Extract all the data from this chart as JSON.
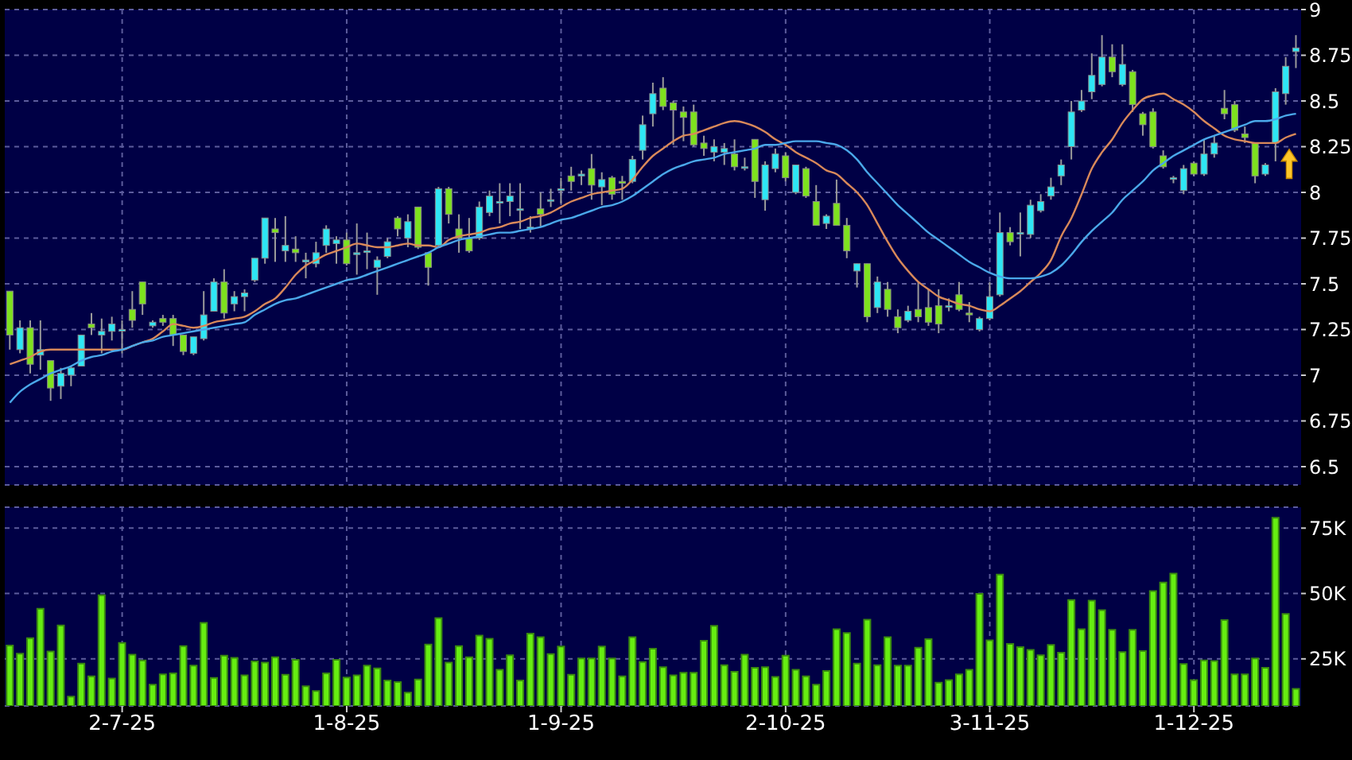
{
  "chart_data": [
    {
      "type": "candlestick",
      "categories": [
        null,
        null,
        null,
        null,
        null,
        null,
        null,
        null,
        null,
        null,
        null,
        null,
        null,
        null,
        null,
        null,
        null,
        null,
        null,
        null,
        null,
        null,
        null,
        null,
        null,
        null,
        null,
        null,
        null,
        null,
        null,
        null,
        null,
        null,
        null,
        null,
        null,
        null,
        null,
        null,
        null,
        null,
        null,
        null,
        null,
        null,
        null,
        null,
        null,
        null,
        null,
        null,
        null,
        null,
        null,
        null,
        null,
        null,
        null,
        null,
        null,
        null,
        null,
        null,
        null,
        null,
        null,
        null,
        null,
        null,
        null,
        null,
        null,
        null,
        null,
        null,
        null,
        null,
        null,
        null,
        null,
        null,
        null,
        null,
        null,
        null,
        null,
        null,
        null,
        null,
        null,
        null,
        null,
        null,
        null,
        null,
        null,
        null,
        null,
        null,
        null,
        null,
        null,
        null,
        null,
        null,
        null,
        null,
        null,
        null,
        null,
        null,
        null,
        null,
        null,
        null,
        null,
        null,
        null,
        null,
        null,
        null,
        null,
        null,
        null,
        null,
        null
      ],
      "ohlc": [
        [
          7.46,
          7.46,
          7.14,
          7.22
        ],
        [
          7.14,
          7.3,
          7.12,
          7.26
        ],
        [
          7.26,
          7.3,
          7.01,
          7.06
        ],
        [
          7.11,
          7.3,
          7.03,
          7.14
        ],
        [
          7.08,
          7.08,
          6.86,
          6.93
        ],
        [
          6.94,
          7.04,
          6.87,
          7.01
        ],
        [
          7.0,
          7.05,
          6.94,
          7.04
        ],
        [
          7.05,
          7.22,
          7.05,
          7.22
        ],
        [
          7.28,
          7.34,
          7.22,
          7.26
        ],
        [
          7.22,
          7.31,
          7.12,
          7.24
        ],
        [
          7.24,
          7.32,
          7.19,
          7.28
        ],
        [
          7.25,
          7.3,
          7.12,
          7.25
        ],
        [
          7.36,
          7.46,
          7.26,
          7.3
        ],
        [
          7.51,
          7.51,
          7.33,
          7.39
        ],
        [
          7.27,
          7.3,
          7.26,
          7.29
        ],
        [
          7.31,
          7.33,
          7.27,
          7.29
        ],
        [
          7.31,
          7.33,
          7.16,
          7.22
        ],
        [
          7.22,
          7.22,
          7.11,
          7.13
        ],
        [
          7.12,
          7.21,
          7.11,
          7.21
        ],
        [
          7.2,
          7.46,
          7.19,
          7.33
        ],
        [
          7.35,
          7.53,
          7.35,
          7.51
        ],
        [
          7.51,
          7.58,
          7.31,
          7.34
        ],
        [
          7.39,
          7.46,
          7.35,
          7.43
        ],
        [
          7.43,
          7.47,
          7.35,
          7.45
        ],
        [
          7.52,
          7.64,
          7.51,
          7.64
        ],
        [
          7.64,
          7.86,
          7.61,
          7.86
        ],
        [
          7.8,
          7.86,
          7.62,
          7.78
        ],
        [
          7.68,
          7.87,
          7.62,
          7.71
        ],
        [
          7.69,
          7.76,
          7.62,
          7.67
        ],
        [
          7.62,
          7.67,
          7.53,
          7.63
        ],
        [
          7.61,
          7.73,
          7.59,
          7.67
        ],
        [
          7.71,
          7.82,
          7.67,
          7.8
        ],
        [
          7.72,
          7.76,
          7.61,
          7.74
        ],
        [
          7.74,
          7.78,
          7.6,
          7.61
        ],
        [
          7.66,
          7.83,
          7.55,
          7.67
        ],
        [
          7.68,
          7.78,
          7.58,
          7.68
        ],
        [
          7.59,
          7.65,
          7.44,
          7.63
        ],
        [
          7.65,
          7.75,
          7.64,
          7.73
        ],
        [
          7.86,
          7.87,
          7.76,
          7.8
        ],
        [
          7.75,
          7.88,
          7.7,
          7.84
        ],
        [
          7.92,
          7.92,
          7.69,
          7.7
        ],
        [
          7.67,
          7.67,
          7.49,
          7.59
        ],
        [
          7.71,
          8.03,
          7.7,
          8.02
        ],
        [
          8.02,
          8.03,
          7.83,
          7.88
        ],
        [
          7.8,
          7.88,
          7.67,
          7.75
        ],
        [
          7.75,
          7.86,
          7.67,
          7.68
        ],
        [
          7.75,
          7.95,
          7.74,
          7.92
        ],
        [
          7.89,
          8.01,
          7.87,
          7.98
        ],
        [
          7.95,
          8.05,
          7.83,
          7.95
        ],
        [
          7.95,
          8.05,
          7.87,
          7.98
        ],
        [
          7.91,
          8.05,
          7.8,
          7.91
        ],
        [
          7.81,
          7.87,
          7.78,
          7.81
        ],
        [
          7.91,
          8.0,
          7.81,
          7.88
        ],
        [
          7.96,
          8.02,
          7.92,
          7.96
        ],
        [
          8.01,
          8.08,
          7.94,
          8.02
        ],
        [
          8.09,
          8.14,
          8.01,
          8.06
        ],
        [
          8.09,
          8.12,
          8.04,
          8.1
        ],
        [
          8.13,
          8.21,
          7.96,
          8.04
        ],
        [
          8.03,
          8.11,
          7.93,
          8.07
        ],
        [
          8.08,
          8.09,
          7.96,
          7.99
        ],
        [
          8.06,
          8.09,
          7.96,
          8.05
        ],
        [
          8.06,
          8.2,
          8.05,
          8.18
        ],
        [
          8.23,
          8.42,
          8.18,
          8.37
        ],
        [
          8.43,
          8.6,
          8.36,
          8.54
        ],
        [
          8.57,
          8.63,
          8.45,
          8.47
        ],
        [
          8.49,
          8.5,
          8.26,
          8.45
        ],
        [
          8.44,
          8.47,
          8.28,
          8.41
        ],
        [
          8.44,
          8.48,
          8.25,
          8.26
        ],
        [
          8.27,
          8.31,
          8.2,
          8.24
        ],
        [
          8.22,
          8.29,
          8.17,
          8.25
        ],
        [
          8.22,
          8.27,
          8.15,
          8.24
        ],
        [
          8.21,
          8.29,
          8.12,
          8.14
        ],
        [
          8.14,
          8.19,
          8.12,
          8.14
        ],
        [
          8.29,
          8.29,
          7.97,
          8.06
        ],
        [
          7.96,
          8.17,
          7.9,
          8.15
        ],
        [
          8.13,
          8.24,
          8.11,
          8.21
        ],
        [
          8.2,
          8.22,
          8.06,
          8.08
        ],
        [
          8.0,
          8.15,
          7.99,
          8.15
        ],
        [
          8.13,
          8.14,
          7.97,
          7.98
        ],
        [
          7.95,
          8.04,
          7.82,
          7.82
        ],
        [
          7.83,
          7.88,
          7.8,
          7.87
        ],
        [
          7.94,
          8.07,
          7.82,
          7.82
        ],
        [
          7.82,
          7.86,
          7.64,
          7.68
        ],
        [
          7.57,
          7.61,
          7.48,
          7.61
        ],
        [
          7.61,
          7.61,
          7.29,
          7.32
        ],
        [
          7.37,
          7.54,
          7.34,
          7.51
        ],
        [
          7.47,
          7.51,
          7.32,
          7.36
        ],
        [
          7.32,
          7.36,
          7.23,
          7.26
        ],
        [
          7.3,
          7.38,
          7.29,
          7.35
        ],
        [
          7.36,
          7.51,
          7.29,
          7.32
        ],
        [
          7.37,
          7.47,
          7.27,
          7.29
        ],
        [
          7.38,
          7.47,
          7.23,
          7.28
        ],
        [
          7.38,
          7.42,
          7.35,
          7.38
        ],
        [
          7.44,
          7.51,
          7.35,
          7.36
        ],
        [
          7.34,
          7.4,
          7.29,
          7.33
        ],
        [
          7.25,
          7.32,
          7.24,
          7.31
        ],
        [
          7.31,
          7.51,
          7.3,
          7.43
        ],
        [
          7.44,
          7.89,
          7.43,
          7.78
        ],
        [
          7.78,
          7.81,
          7.71,
          7.73
        ],
        [
          7.78,
          7.89,
          7.65,
          7.78
        ],
        [
          7.77,
          7.96,
          7.75,
          7.93
        ],
        [
          7.9,
          7.99,
          7.89,
          7.95
        ],
        [
          7.98,
          8.08,
          7.96,
          8.03
        ],
        [
          8.09,
          8.18,
          8.04,
          8.15
        ],
        [
          8.25,
          8.5,
          8.18,
          8.44
        ],
        [
          8.45,
          8.56,
          8.44,
          8.5
        ],
        [
          8.55,
          8.76,
          8.51,
          8.64
        ],
        [
          8.59,
          8.86,
          8.58,
          8.74
        ],
        [
          8.74,
          8.81,
          8.63,
          8.66
        ],
        [
          8.59,
          8.81,
          8.58,
          8.7
        ],
        [
          8.66,
          8.67,
          8.44,
          8.48
        ],
        [
          8.43,
          8.44,
          8.31,
          8.37
        ],
        [
          8.44,
          8.46,
          8.24,
          8.25
        ],
        [
          8.2,
          8.23,
          8.13,
          8.14
        ],
        [
          8.08,
          8.09,
          8.05,
          8.08
        ],
        [
          8.01,
          8.15,
          7.99,
          8.13
        ],
        [
          8.16,
          8.17,
          8.09,
          8.1
        ],
        [
          8.1,
          8.29,
          8.09,
          8.21
        ],
        [
          8.21,
          8.31,
          8.19,
          8.27
        ],
        [
          8.46,
          8.56,
          8.4,
          8.43
        ],
        [
          8.48,
          8.5,
          8.33,
          8.34
        ],
        [
          8.32,
          8.36,
          8.27,
          8.3
        ],
        [
          8.27,
          8.27,
          8.05,
          8.09
        ],
        [
          8.1,
          8.16,
          8.09,
          8.15
        ],
        [
          8.27,
          8.57,
          8.17,
          8.55
        ],
        [
          8.54,
          8.74,
          8.48,
          8.69
        ],
        [
          8.77,
          8.86,
          8.68,
          8.79
        ]
      ],
      "colors": [
        "#7ee21e",
        "#2ee6f5",
        "#7ee21e",
        "#2ee6f5",
        "#7ee21e",
        "#2ee6f5",
        "#2ee6f5",
        "#2ee6f5",
        "#7ee21e",
        "#2ee6f5",
        "#2ee6f5",
        "#2ee6f5",
        "#7ee21e",
        "#7ee21e",
        "#2ee6f5",
        "#7ee21e",
        "#7ee21e",
        "#7ee21e",
        "#2ee6f5",
        "#2ee6f5",
        "#2ee6f5",
        "#7ee21e",
        "#2ee6f5",
        "#2ee6f5",
        "#2ee6f5",
        "#2ee6f5",
        "#7ee21e",
        "#2ee6f5",
        "#7ee21e",
        "#2ee6f5",
        "#2ee6f5",
        "#2ee6f5",
        "#2ee6f5",
        "#7ee21e",
        "#2ee6f5",
        "#2ee6f5",
        "#2ee6f5",
        "#2ee6f5",
        "#7ee21e",
        "#2ee6f5",
        "#7ee21e",
        "#7ee21e",
        "#2ee6f5",
        "#7ee21e",
        "#7ee21e",
        "#7ee21e",
        "#2ee6f5",
        "#2ee6f5",
        "#2ee6f5",
        "#2ee6f5",
        "#2ee6f5",
        "#2ee6f5",
        "#7ee21e",
        "#2ee6f5",
        "#2ee6f5",
        "#7ee21e",
        "#2ee6f5",
        "#7ee21e",
        "#2ee6f5",
        "#7ee21e",
        "#7ee21e",
        "#2ee6f5",
        "#2ee6f5",
        "#2ee6f5",
        "#7ee21e",
        "#7ee21e",
        "#7ee21e",
        "#7ee21e",
        "#7ee21e",
        "#2ee6f5",
        "#2ee6f5",
        "#7ee21e",
        "#2ee6f5",
        "#7ee21e",
        "#2ee6f5",
        "#2ee6f5",
        "#7ee21e",
        "#2ee6f5",
        "#7ee21e",
        "#7ee21e",
        "#2ee6f5",
        "#7ee21e",
        "#7ee21e",
        "#2ee6f5",
        "#7ee21e",
        "#2ee6f5",
        "#7ee21e",
        "#7ee21e",
        "#2ee6f5",
        "#7ee21e",
        "#7ee21e",
        "#7ee21e",
        "#2ee6f5",
        "#7ee21e",
        "#7ee21e",
        "#2ee6f5",
        "#2ee6f5",
        "#2ee6f5",
        "#7ee21e",
        "#2ee6f5",
        "#2ee6f5",
        "#2ee6f5",
        "#2ee6f5",
        "#2ee6f5",
        "#2ee6f5",
        "#2ee6f5",
        "#2ee6f5",
        "#2ee6f5",
        "#7ee21e",
        "#2ee6f5",
        "#7ee21e",
        "#7ee21e",
        "#7ee21e",
        "#7ee21e",
        "#2ee6f5",
        "#2ee6f5",
        "#7ee21e",
        "#2ee6f5",
        "#2ee6f5",
        "#7ee21e",
        "#7ee21e",
        "#7ee21e",
        "#7ee21e",
        "#2ee6f5",
        "#2ee6f5",
        "#2ee6f5",
        "#2ee6f5"
      ],
      "series": [
        {
          "type": "line",
          "color": "#d9895a",
          "values": [
            7.06,
            7.08,
            7.1,
            7.13,
            7.14,
            7.14,
            7.14,
            7.14,
            7.14,
            7.14,
            7.14,
            7.14,
            7.16,
            7.18,
            7.2,
            7.24,
            7.28,
            7.27,
            7.26,
            7.27,
            7.29,
            7.3,
            7.31,
            7.32,
            7.35,
            7.39,
            7.42,
            7.48,
            7.55,
            7.6,
            7.63,
            7.66,
            7.68,
            7.7,
            7.72,
            7.71,
            7.7,
            7.7,
            7.71,
            7.72,
            7.71,
            7.71,
            7.7,
            7.74,
            7.76,
            7.77,
            7.78,
            7.8,
            7.81,
            7.83,
            7.84,
            7.86,
            7.87,
            7.89,
            7.92,
            7.95,
            7.97,
            7.99,
            8.0,
            8.01,
            8.02,
            8.07,
            8.14,
            8.2,
            8.24,
            8.28,
            8.31,
            8.32,
            8.34,
            8.36,
            8.38,
            8.39,
            8.38,
            8.36,
            8.33,
            8.29,
            8.26,
            8.22,
            8.19,
            8.16,
            8.12,
            8.1,
            8.05,
            8.0,
            7.93,
            7.83,
            7.73,
            7.64,
            7.57,
            7.51,
            7.47,
            7.43,
            7.41,
            7.39,
            7.38,
            7.36,
            7.35,
            7.38,
            7.42,
            7.46,
            7.51,
            7.56,
            7.63,
            7.76,
            7.86,
            7.99,
            8.13,
            8.22,
            8.29,
            8.38,
            8.45,
            8.51,
            8.53,
            8.54,
            8.51,
            8.48,
            8.44,
            8.39,
            8.35,
            8.31,
            8.29,
            8.28,
            8.27,
            8.27,
            8.27,
            8.3,
            8.32
          ]
        },
        {
          "type": "line",
          "color": "#4aa8ea",
          "values": [
            6.85,
            6.91,
            6.95,
            6.98,
            7.01,
            7.03,
            7.05,
            7.08,
            7.1,
            7.11,
            7.13,
            7.14,
            7.16,
            7.18,
            7.19,
            7.21,
            7.22,
            7.23,
            7.24,
            7.25,
            7.26,
            7.27,
            7.28,
            7.29,
            7.33,
            7.36,
            7.39,
            7.41,
            7.42,
            7.44,
            7.46,
            7.48,
            7.5,
            7.52,
            7.53,
            7.55,
            7.57,
            7.59,
            7.61,
            7.63,
            7.65,
            7.67,
            7.7,
            7.72,
            7.74,
            7.75,
            7.76,
            7.77,
            7.78,
            7.78,
            7.79,
            7.8,
            7.81,
            7.83,
            7.85,
            7.86,
            7.88,
            7.9,
            7.92,
            7.93,
            7.95,
            7.98,
            8.02,
            8.06,
            8.1,
            8.13,
            8.15,
            8.17,
            8.18,
            8.19,
            8.21,
            8.22,
            8.23,
            8.24,
            8.26,
            8.26,
            8.27,
            8.28,
            8.28,
            8.28,
            8.27,
            8.26,
            8.23,
            8.18,
            8.11,
            8.05,
            7.99,
            7.93,
            7.88,
            7.83,
            7.78,
            7.74,
            7.7,
            7.66,
            7.62,
            7.59,
            7.56,
            7.54,
            7.53,
            7.53,
            7.53,
            7.54,
            7.56,
            7.6,
            7.66,
            7.73,
            7.79,
            7.84,
            7.89,
            7.96,
            8.01,
            8.06,
            8.12,
            8.16,
            8.2,
            8.23,
            8.26,
            8.29,
            8.31,
            8.33,
            8.35,
            8.37,
            8.39,
            8.39,
            8.4,
            8.42,
            8.43
          ]
        }
      ],
      "ylim": [
        6.4,
        9
      ],
      "yticks": [
        6.5,
        6.75,
        7,
        7.25,
        7.5,
        7.75,
        8,
        8.25,
        8.5,
        8.75,
        9
      ],
      "grid": true,
      "tick_labels": "y"
    },
    {
      "type": "bar",
      "categories": [
        null,
        null,
        null,
        null,
        null,
        null,
        null,
        null,
        null,
        null,
        null,
        "2-7-25",
        null,
        null,
        null,
        null,
        null,
        null,
        null,
        null,
        null,
        null,
        null,
        null,
        null,
        null,
        null,
        null,
        null,
        null,
        null,
        null,
        null,
        "1-8-25",
        null,
        null,
        null,
        null,
        null,
        null,
        null,
        null,
        null,
        null,
        null,
        null,
        null,
        null,
        null,
        null,
        null,
        null,
        null,
        null,
        "1-9-25",
        null,
        null,
        null,
        null,
        null,
        null,
        null,
        null,
        null,
        null,
        null,
        null,
        null,
        null,
        null,
        null,
        null,
        null,
        null,
        null,
        null,
        "2-10-25",
        null,
        null,
        null,
        null,
        null,
        null,
        null,
        null,
        null,
        null,
        null,
        null,
        null,
        null,
        null,
        null,
        null,
        null,
        null,
        "3-11-25",
        null,
        null,
        null,
        null,
        null,
        null,
        null,
        null,
        null,
        null,
        null,
        null,
        null,
        null,
        null,
        null,
        null,
        null,
        null,
        "1-12-25",
        null,
        null,
        null,
        null,
        null,
        null,
        null,
        null,
        null,
        null
      ],
      "values": [
        30.1,
        27.0,
        32.9,
        44.2,
        27.8,
        37.8,
        10.6,
        23.2,
        18.3,
        49.3,
        17.5,
        31.1,
        26.6,
        24.4,
        15.1,
        19.1,
        19.5,
        29.9,
        22.4,
        38.8,
        17.7,
        26.2,
        25.4,
        18.7,
        24.0,
        23.6,
        25.6,
        18.9,
        24.6,
        14.5,
        12.7,
        19.5,
        24.6,
        17.9,
        18.7,
        22.4,
        21.4,
        16.7,
        16.1,
        12.1,
        17.1,
        30.5,
        40.6,
        23.6,
        29.9,
        25.6,
        33.9,
        32.7,
        20.8,
        26.4,
        16.7,
        34.7,
        33.3,
        26.8,
        29.7,
        18.9,
        25.2,
        25.2,
        29.7,
        25.2,
        18.3,
        33.3,
        23.8,
        28.9,
        21.8,
        18.7,
        19.7,
        19.7,
        31.9,
        37.6,
        22.6,
        20.1,
        26.6,
        21.6,
        21.8,
        18.1,
        26.2,
        20.8,
        18.3,
        15.1,
        20.4,
        36.3,
        34.9,
        23.2,
        40.0,
        22.6,
        33.3,
        22.4,
        22.4,
        29.3,
        32.5,
        15.9,
        16.9,
        19.1,
        20.8,
        49.9,
        32.1,
        57.2,
        30.7,
        29.5,
        28.4,
        26.4,
        30.3,
        27.4,
        47.5,
        36.3,
        47.3,
        43.6,
        36.1,
        27.6,
        36.1,
        28.0,
        50.9,
        54.2,
        57.6,
        23.0,
        16.9,
        24.4,
        24.2,
        39.8,
        19.1,
        19.1,
        25.2,
        21.6,
        79.0,
        42.2,
        13.5
      ],
      "color": "#66ee11",
      "ylim": [
        7,
        83
      ],
      "yticks": [
        {
          "value": 25,
          "label": "25K"
        },
        {
          "value": 50,
          "label": "50K"
        },
        {
          "value": 75,
          "label": "75K"
        }
      ],
      "grid": true
    }
  ]
}
